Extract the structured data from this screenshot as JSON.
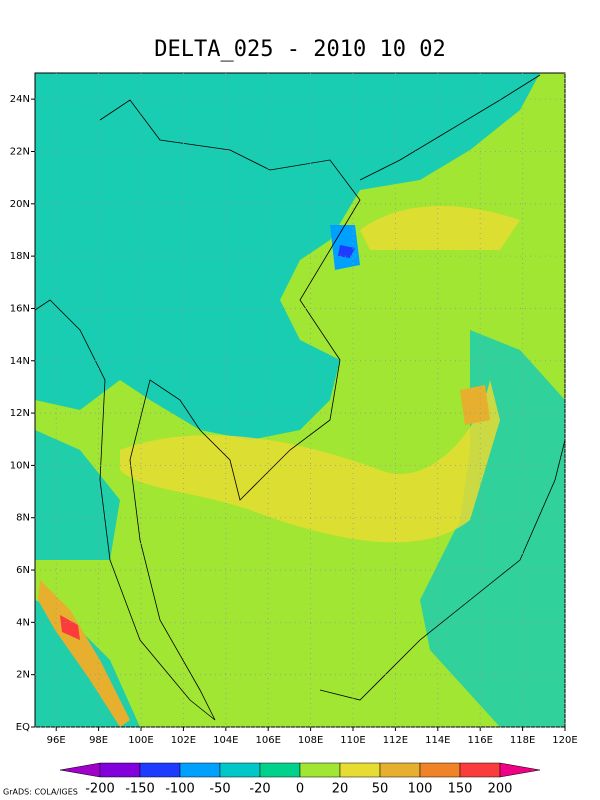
{
  "chart_data": {
    "type": "contour-map",
    "title": "DELTA_025 - 2010 10 02",
    "xlim": [
      95,
      120
    ],
    "ylim": [
      0,
      25
    ],
    "xticks": [
      {
        "value": 96,
        "label": "96E"
      },
      {
        "value": 98,
        "label": "98E"
      },
      {
        "value": 100,
        "label": "100E"
      },
      {
        "value": 102,
        "label": "102E"
      },
      {
        "value": 104,
        "label": "104E"
      },
      {
        "value": 106,
        "label": "106E"
      },
      {
        "value": 108,
        "label": "108E"
      },
      {
        "value": 110,
        "label": "110E"
      },
      {
        "value": 112,
        "label": "112E"
      },
      {
        "value": 114,
        "label": "114E"
      },
      {
        "value": 116,
        "label": "116E"
      },
      {
        "value": 118,
        "label": "118E"
      },
      {
        "value": 120,
        "label": "120E"
      }
    ],
    "yticks": [
      {
        "value": 0,
        "label": "EQ"
      },
      {
        "value": 2,
        "label": "2N"
      },
      {
        "value": 4,
        "label": "4N"
      },
      {
        "value": 6,
        "label": "6N"
      },
      {
        "value": 8,
        "label": "8N"
      },
      {
        "value": 10,
        "label": "10N"
      },
      {
        "value": 12,
        "label": "12N"
      },
      {
        "value": 14,
        "label": "14N"
      },
      {
        "value": 16,
        "label": "16N"
      },
      {
        "value": 18,
        "label": "18N"
      },
      {
        "value": 20,
        "label": "20N"
      },
      {
        "value": 22,
        "label": "22N"
      },
      {
        "value": 24,
        "label": "24N"
      }
    ],
    "grid": true,
    "levels": [
      -200,
      -150,
      -100,
      -50,
      -20,
      0,
      20,
      50,
      100,
      150,
      200
    ],
    "colors": [
      "#a000c8",
      "#8200dc",
      "#1e3cff",
      "#00a0ff",
      "#00c8c8",
      "#00d28c",
      "#a0e632",
      "#e6dc32",
      "#e6af2d",
      "#f08228",
      "#fa3c3c",
      "#f00082"
    ],
    "footer": "GrADS: COLA/IGES"
  }
}
